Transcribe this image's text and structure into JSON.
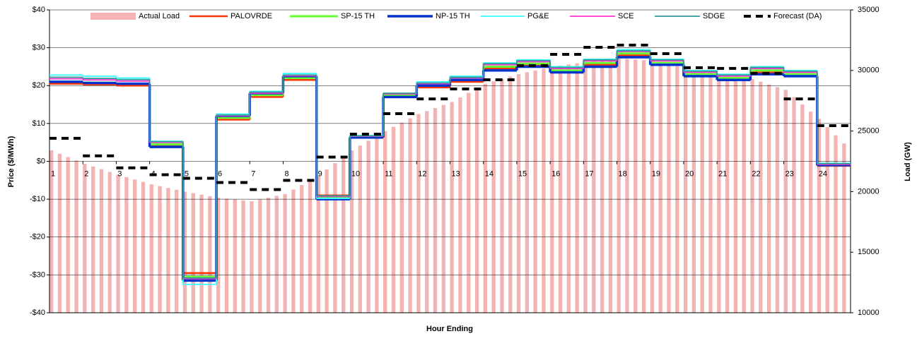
{
  "chart_data": {
    "type": "step",
    "x_label": "Hour Ending",
    "y_label": "Price ($/MWh)",
    "y2_label": "Load (GW)",
    "x": [
      1,
      2,
      3,
      4,
      5,
      6,
      7,
      8,
      9,
      10,
      11,
      12,
      13,
      14,
      15,
      16,
      17,
      18,
      19,
      20,
      21,
      22,
      23,
      24
    ],
    "xlim": [
      1,
      25
    ],
    "xticks": [
      1,
      2,
      3,
      4,
      5,
      6,
      7,
      8,
      9,
      10,
      11,
      12,
      13,
      14,
      15,
      16,
      17,
      18,
      19,
      20,
      21,
      22,
      23,
      24
    ],
    "ylim": [
      -40,
      40
    ],
    "yticks": [
      {
        "value": -40,
        "label": "-$40"
      },
      {
        "value": -30,
        "label": "-$30"
      },
      {
        "value": -20,
        "label": "-$20"
      },
      {
        "value": -10,
        "label": "-$10"
      },
      {
        "value": 0,
        "label": "$0"
      },
      {
        "value": 10,
        "label": "$10"
      },
      {
        "value": 20,
        "label": "$20"
      },
      {
        "value": 30,
        "label": "$30"
      },
      {
        "value": 40,
        "label": "$40"
      }
    ],
    "y2lim": [
      10000,
      35000
    ],
    "y2ticks": [
      10000,
      15000,
      20000,
      25000,
      30000,
      35000
    ],
    "grid": true,
    "legend": "top",
    "series": [
      {
        "name": "Actual Load",
        "type": "bar",
        "axis": "y2",
        "color": "#f4b3b3",
        "x": [
          1,
          1.25,
          1.5,
          1.75,
          2,
          2.25,
          2.5,
          2.75,
          3,
          3.25,
          3.5,
          3.75,
          4,
          4.25,
          4.5,
          4.75,
          5,
          5.25,
          5.5,
          5.75,
          6,
          6.25,
          6.5,
          6.75,
          7,
          7.25,
          7.5,
          7.75,
          8,
          8.25,
          8.5,
          8.75,
          9,
          9.25,
          9.5,
          9.75,
          10,
          10.25,
          10.5,
          10.75,
          11,
          11.25,
          11.5,
          11.75,
          12,
          12.25,
          12.5,
          12.75,
          13,
          13.25,
          13.5,
          13.75,
          14,
          14.25,
          14.5,
          14.75,
          15,
          15.25,
          15.5,
          15.75,
          16,
          16.25,
          16.5,
          16.75,
          17,
          17.25,
          17.5,
          17.75,
          18,
          18.25,
          18.5,
          18.75,
          19,
          19.25,
          19.5,
          19.75,
          20,
          20.25,
          20.5,
          20.75,
          21,
          21.25,
          21.5,
          21.75,
          22,
          22.25,
          22.5,
          22.75,
          23,
          23.25,
          23.5,
          23.75,
          24,
          24.25,
          24.5,
          24.75
        ],
        "values": [
          23400,
          23125,
          22850,
          22575,
          22300,
          22075,
          21850,
          21625,
          21400,
          21200,
          21000,
          20800,
          20600,
          20450,
          20300,
          20150,
          20000,
          19875,
          19750,
          19625,
          19500,
          19425,
          19350,
          19275,
          19200,
          19350,
          19500,
          19650,
          19800,
          20175,
          20550,
          20925,
          21300,
          21825,
          22350,
          22875,
          23400,
          23800,
          24200,
          24600,
          25000,
          25350,
          25700,
          26050,
          26400,
          26650,
          26900,
          27150,
          27400,
          27775,
          28150,
          28525,
          28900,
          29100,
          29300,
          29500,
          29700,
          29850,
          30000,
          30150,
          30300,
          30400,
          30500,
          30600,
          30700,
          30775,
          30850,
          30925,
          31000,
          30950,
          30900,
          30850,
          30800,
          30650,
          30500,
          30350,
          30200,
          30075,
          29950,
          29825,
          29700,
          29600,
          29500,
          29400,
          29300,
          29075,
          28850,
          28625,
          28400,
          27800,
          27200,
          26600,
          26000,
          25325,
          24650,
          23975
        ]
      },
      {
        "name": "PALOVRDE",
        "color": "#ff3300",
        "width": 2.5,
        "values": [
          20.5,
          20.3,
          20,
          4,
          -29.5,
          11,
          17,
          21.5,
          -9,
          6.5,
          17,
          19.5,
          21,
          24.5,
          25.3,
          23.5,
          25.5,
          28,
          25.5,
          22.5,
          21.5,
          23.5,
          22.5,
          -1.2
        ]
      },
      {
        "name": "SP-15 TH",
        "color": "#66ff33",
        "width": 3,
        "values": [
          21,
          20.8,
          20.5,
          4.5,
          -30.5,
          11.5,
          17.5,
          22,
          -9.5,
          6.5,
          17.5,
          20,
          21.5,
          25,
          25.8,
          24,
          26,
          28.5,
          26,
          23,
          22,
          24,
          23,
          -1
        ]
      },
      {
        "name": "NP-15 TH",
        "color": "#0033cc",
        "width": 3.5,
        "values": [
          21,
          20.7,
          20.5,
          3.8,
          -31.5,
          12,
          18,
          22.5,
          -10,
          6.3,
          17,
          20,
          21.5,
          24,
          25,
          23.5,
          25,
          27.5,
          25.5,
          22.5,
          21.5,
          23,
          22.5,
          -1
        ]
      },
      {
        "name": "PG&E",
        "color": "#33ffff",
        "width": 1.8,
        "values": [
          22.8,
          22.5,
          22,
          5.3,
          -32.5,
          12.5,
          18.5,
          23.2,
          -9.8,
          6.8,
          18,
          21,
          22.5,
          26,
          26.8,
          25,
          27,
          29.5,
          27,
          24,
          23,
          25,
          24,
          -0.5
        ]
      },
      {
        "name": "SCE",
        "color": "#ff33cc",
        "width": 1.8,
        "values": [
          21.8,
          21.5,
          21.2,
          5,
          -31,
          12,
          18,
          22.6,
          -9.3,
          6.6,
          17.8,
          20.5,
          22,
          25.5,
          26.3,
          24.5,
          26.5,
          29,
          26.5,
          23.5,
          22.5,
          24.5,
          23.5,
          -0.8
        ]
      },
      {
        "name": "SDGE",
        "color": "#339999",
        "width": 1.8,
        "values": [
          22.2,
          21.9,
          21.6,
          5.2,
          -30.8,
          12.2,
          18.3,
          22.8,
          -9.1,
          6.7,
          18,
          20.7,
          22.2,
          25.8,
          26.6,
          24.8,
          26.8,
          29.2,
          26.8,
          23.8,
          22.8,
          24.8,
          23.8,
          -0.6
        ]
      },
      {
        "name": "Forecast (DA)",
        "axis": "y2",
        "color": "#000000",
        "width": 4,
        "dash": true,
        "values": [
          24400,
          22950,
          21960,
          21390,
          21100,
          20750,
          20170,
          20930,
          22850,
          24740,
          26430,
          27650,
          28470,
          29230,
          30400,
          31330,
          31910,
          32090,
          31390,
          30230,
          30170,
          29760,
          27650,
          25440
        ]
      }
    ]
  }
}
